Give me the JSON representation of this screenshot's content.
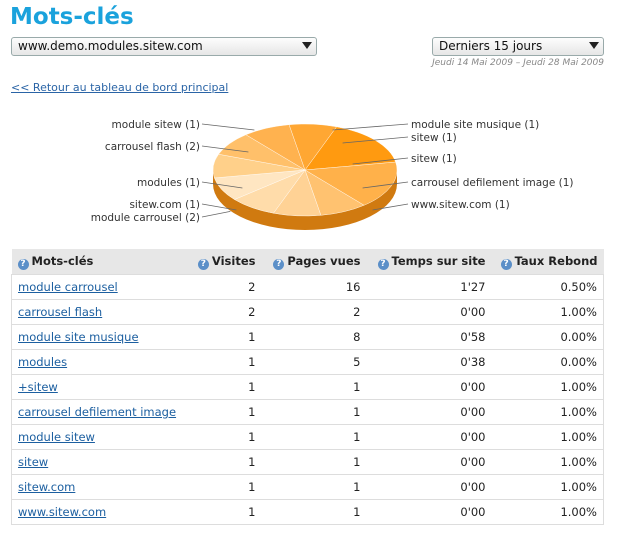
{
  "page": {
    "title": "Mots-clés"
  },
  "filters": {
    "site": "www.demo.modules.sitew.com",
    "period": "Derniers 15 jours",
    "date_range": "Jeudi 14 Mai 2009 – Jeudi 28 Mai 2009"
  },
  "back_link": "<< Retour au tableau de bord principal",
  "pie": {
    "labels_left": [
      "module sitew (1)",
      "carrousel flash (2)",
      "modules (1)",
      "sitew.com (1)",
      "module carrousel (2)"
    ],
    "labels_right": [
      "module site musique (1)",
      "sitew (1)",
      "sitew (1)",
      "carrousel defilement image (1)",
      "www.sitew.com (1)"
    ]
  },
  "chart_data": {
    "type": "pie",
    "categories": [
      "module carrousel",
      "carrousel flash",
      "module site musique",
      "modules",
      "+sitew",
      "carrousel defilement image",
      "module sitew",
      "sitew",
      "sitew.com",
      "www.sitew.com"
    ],
    "values": [
      2,
      2,
      1,
      1,
      1,
      1,
      1,
      1,
      1,
      1
    ]
  },
  "table": {
    "columns": [
      "Mots-clés",
      "Visites",
      "Pages vues",
      "Temps sur site",
      "Taux Rebond"
    ],
    "help_glyph": "?",
    "rows": [
      [
        "module carrousel",
        "2",
        "16",
        "1'27",
        "0.50%"
      ],
      [
        "carrousel flash",
        "2",
        "2",
        "0'00",
        "1.00%"
      ],
      [
        "module site musique",
        "1",
        "8",
        "0'58",
        "0.00%"
      ],
      [
        "modules",
        "1",
        "5",
        "0'38",
        "0.00%"
      ],
      [
        "+sitew",
        "1",
        "1",
        "0'00",
        "1.00%"
      ],
      [
        "carrousel defilement image",
        "1",
        "1",
        "0'00",
        "1.00%"
      ],
      [
        "module sitew",
        "1",
        "1",
        "0'00",
        "1.00%"
      ],
      [
        "sitew",
        "1",
        "1",
        "0'00",
        "1.00%"
      ],
      [
        "sitew.com",
        "1",
        "1",
        "0'00",
        "1.00%"
      ],
      [
        "www.sitew.com",
        "1",
        "1",
        "0'00",
        "1.00%"
      ]
    ]
  }
}
